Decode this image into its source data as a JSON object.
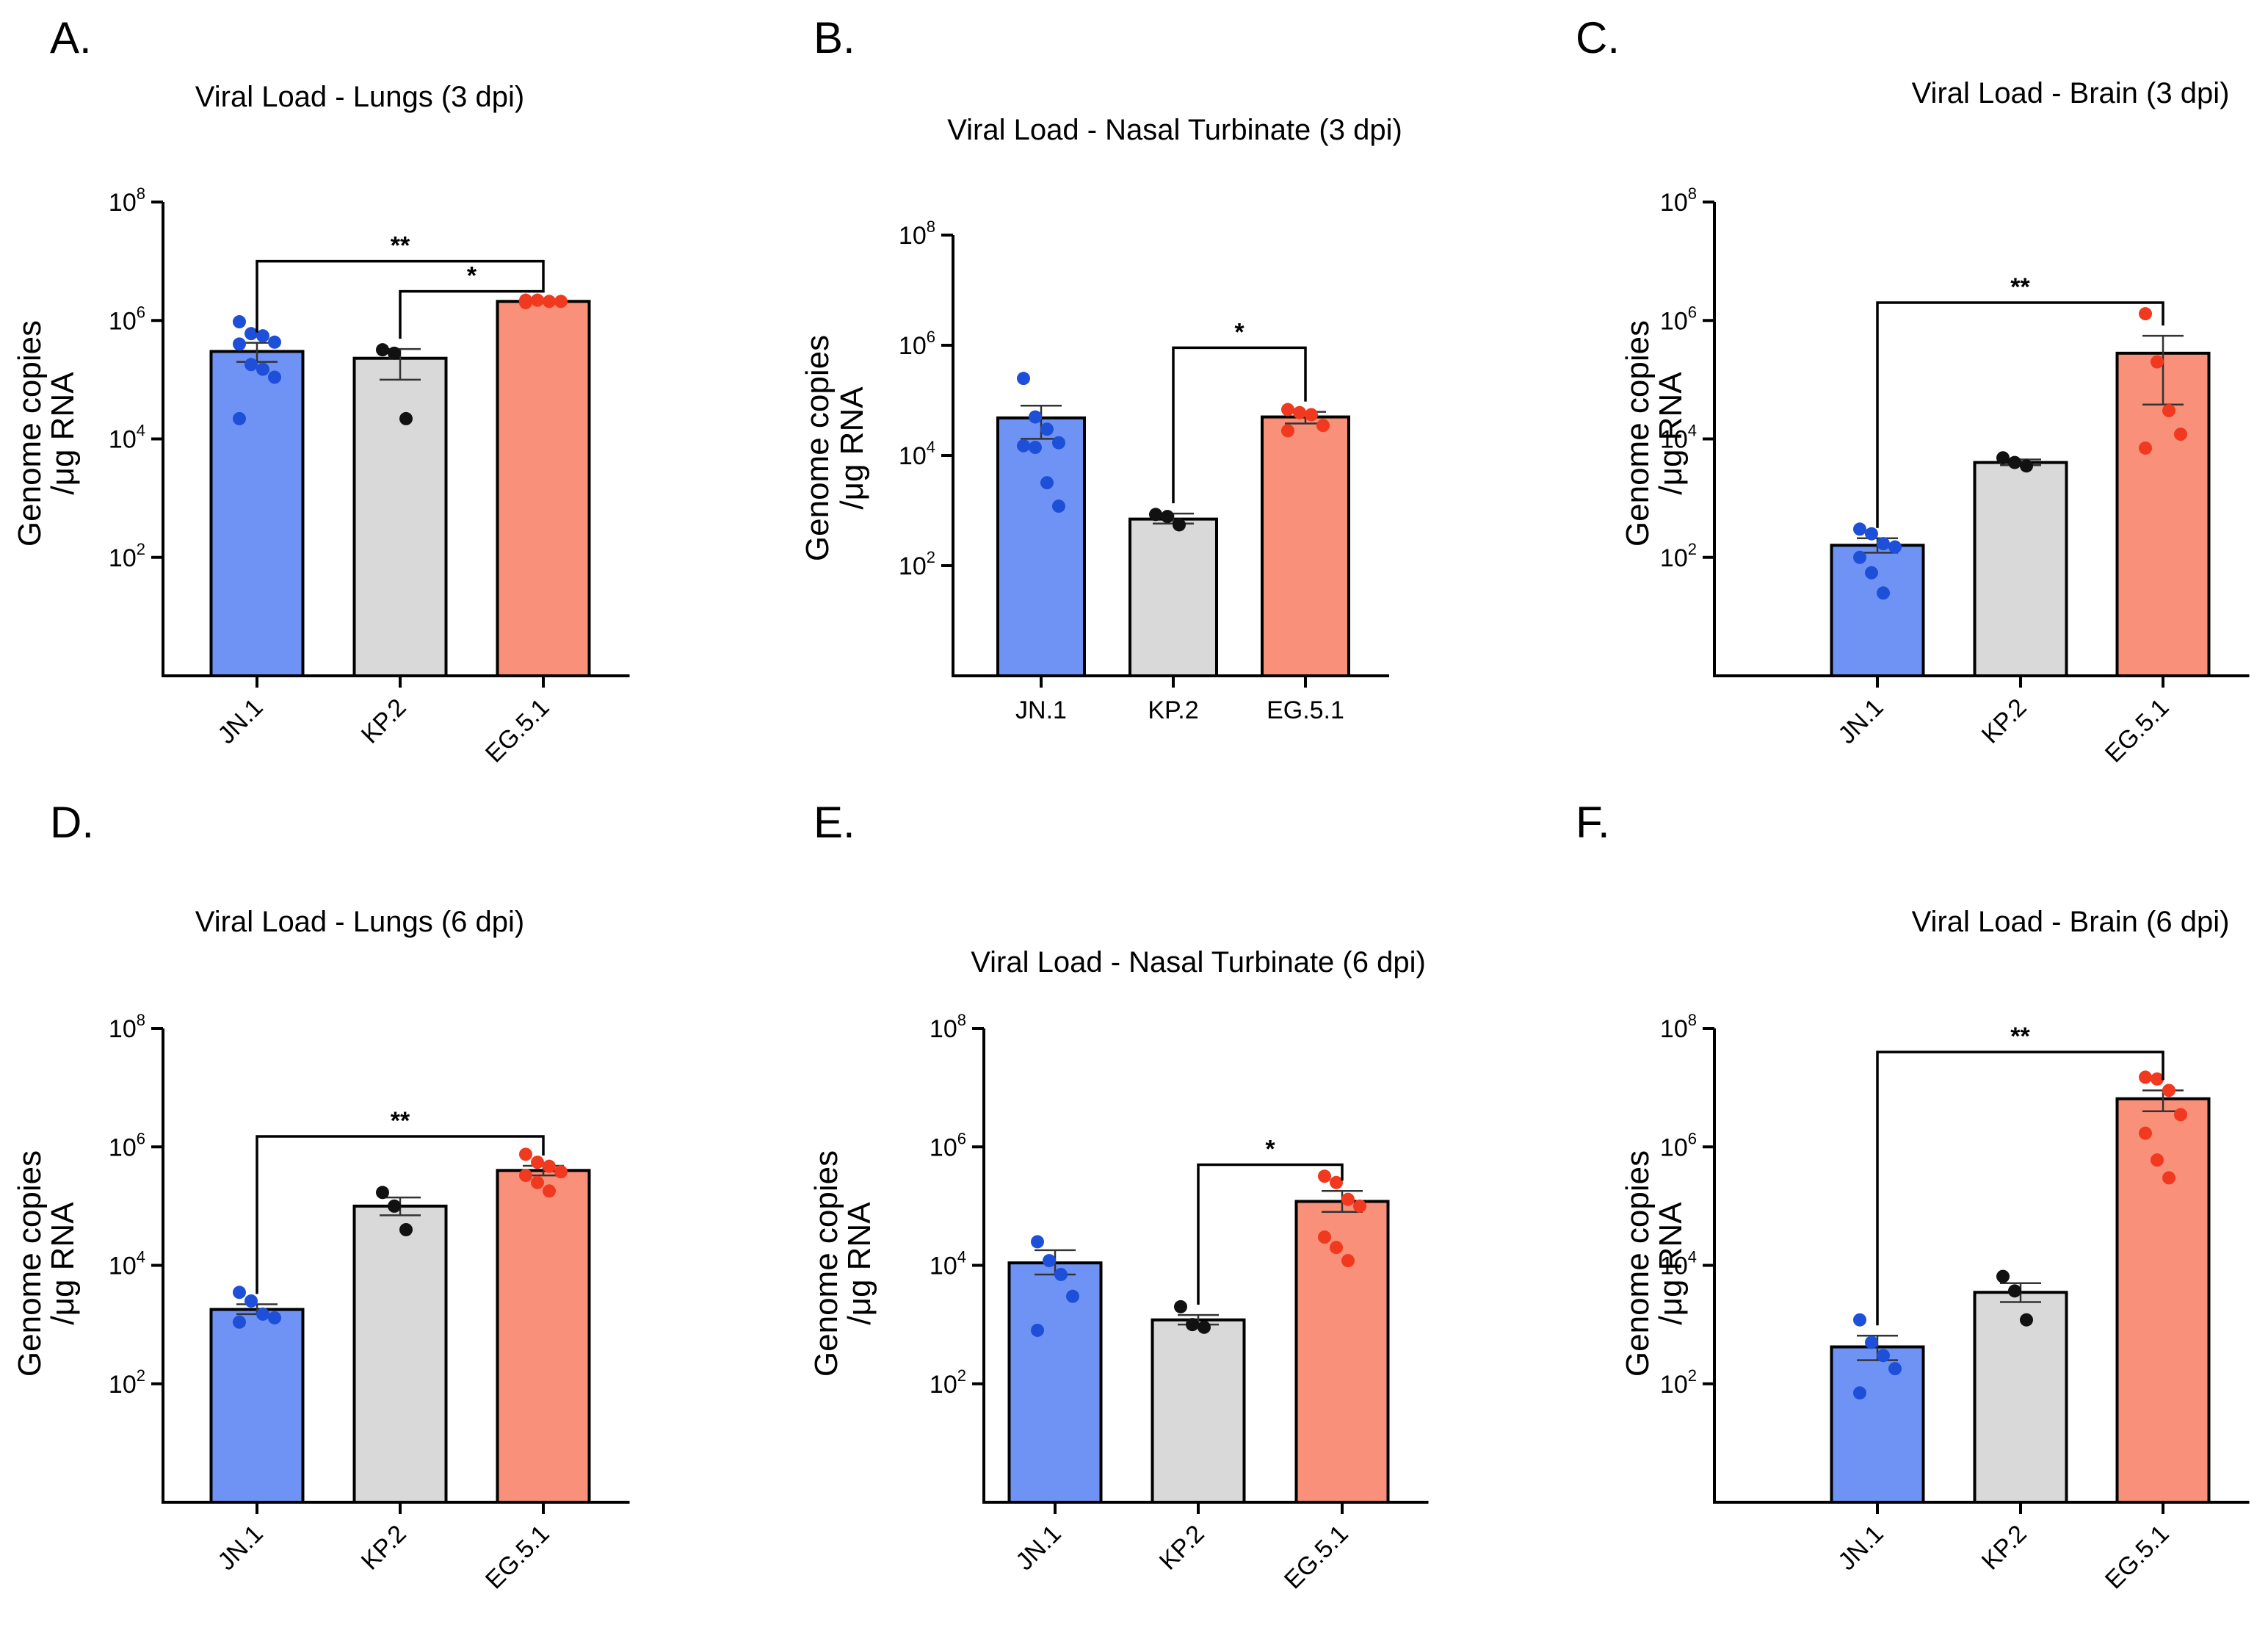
{
  "figure_colors": {
    "JN.1": "#6f93f5",
    "KP.2": "#d9d9d9",
    "EG.5.1": "#f9907a"
  },
  "dot_colors": {
    "JN.1": "#1e4fd8",
    "KP.2": "#111111",
    "EG.5.1": "#f0391e"
  },
  "chart_data": [
    {
      "panel": "A.",
      "type": "bar",
      "title": "Viral Load - Lungs (3 dpi)",
      "ylabel": [
        "Genome copies",
        "/μg RNA"
      ],
      "yscale": "log10",
      "ylim": [
        1,
        100000000
      ],
      "yticks": [
        {
          "base": "10",
          "exp": "2",
          "value": 100
        },
        {
          "base": "10",
          "exp": "4",
          "value": 10000
        },
        {
          "base": "10",
          "exp": "6",
          "value": 1000000
        },
        {
          "base": "10",
          "exp": "8",
          "value": 100000000
        }
      ],
      "categories": [
        "JN.1",
        "KP.2",
        "EG.5.1"
      ],
      "rotate_labels": true,
      "means": [
        300000,
        230000,
        2100000
      ],
      "sem_low": [
        200000,
        100000,
        2000000
      ],
      "sem_high": [
        420000,
        330000,
        2200000
      ],
      "points": [
        [
          950000,
          600000,
          550000,
          430000,
          400000,
          180000,
          150000,
          110000,
          22000
        ],
        [
          320000,
          280000,
          22000
        ],
        [
          2200000,
          2200000,
          2100000,
          2100000,
          2000000
        ]
      ],
      "significance": [
        {
          "from": 0,
          "to": 2,
          "label": "**",
          "y": 10000000
        },
        {
          "from": 1,
          "to": 2,
          "label": "*",
          "y": 3100000
        }
      ]
    },
    {
      "panel": "B.",
      "type": "bar",
      "title": "Viral Load - Nasal Turbinate (3 dpi)",
      "ylabel": [
        "Genome copies",
        "/μg RNA"
      ],
      "yscale": "log10",
      "ylim": [
        1,
        100000000
      ],
      "yticks": [
        {
          "base": "10",
          "exp": "2",
          "value": 100
        },
        {
          "base": "10",
          "exp": "4",
          "value": 10000
        },
        {
          "base": "10",
          "exp": "6",
          "value": 1000000
        },
        {
          "base": "10",
          "exp": "8",
          "value": 100000000
        }
      ],
      "categories": [
        "JN.1",
        "KP.2",
        "EG.5.1"
      ],
      "rotate_labels": false,
      "means": [
        48000,
        700,
        50000
      ],
      "sem_low": [
        20000,
        580,
        38000
      ],
      "sem_high": [
        80000,
        880,
        62000
      ],
      "points": [
        [
          250000,
          50000,
          30000,
          17000,
          15000,
          14000,
          3200,
          1200
        ],
        [
          850,
          780,
          550
        ],
        [
          68000,
          60000,
          55000,
          35000,
          28000
        ]
      ],
      "significance": [
        {
          "from": 1,
          "to": 2,
          "label": "*",
          "y": 900000
        }
      ]
    },
    {
      "panel": "C.",
      "type": "bar",
      "title": "Viral Load - Brain (3 dpi)",
      "ylabel": [
        "Genome copies",
        "/μg RNA"
      ],
      "yscale": "log10",
      "ylim": [
        1,
        100000000
      ],
      "yticks": [
        {
          "base": "10",
          "exp": "2",
          "value": 100
        },
        {
          "base": "10",
          "exp": "4",
          "value": 10000
        },
        {
          "base": "10",
          "exp": "6",
          "value": 1000000
        },
        {
          "base": "10",
          "exp": "8",
          "value": 100000000
        }
      ],
      "categories": [
        "JN.1",
        "KP.2",
        "EG.5.1"
      ],
      "rotate_labels": true,
      "means": [
        160,
        4000,
        280000
      ],
      "sem_low": [
        120,
        3600,
        38000
      ],
      "sem_high": [
        210,
        4500,
        550000
      ],
      "points": [
        [
          300,
          250,
          170,
          150,
          100,
          55,
          25
        ],
        [
          4800,
          4000,
          3500
        ],
        [
          1300000,
          200000,
          30000,
          12000,
          7000
        ]
      ],
      "significance": [
        {
          "from": 0,
          "to": 2,
          "label": "**",
          "y": 2000000
        }
      ]
    },
    {
      "panel": "D.",
      "type": "bar",
      "title": "Viral Load - Lungs (6 dpi)",
      "ylabel": [
        "Genome copies",
        "/μg RNA"
      ],
      "yscale": "log10",
      "ylim": [
        1,
        100000000
      ],
      "yticks": [
        {
          "base": "10",
          "exp": "2",
          "value": 100
        },
        {
          "base": "10",
          "exp": "4",
          "value": 10000
        },
        {
          "base": "10",
          "exp": "6",
          "value": 1000000
        },
        {
          "base": "10",
          "exp": "8",
          "value": 100000000
        }
      ],
      "categories": [
        "JN.1",
        "KP.2",
        "EG.5.1"
      ],
      "rotate_labels": true,
      "means": [
        1800,
        100000,
        400000
      ],
      "sem_low": [
        1500,
        70000,
        330000
      ],
      "sem_high": [
        2200,
        140000,
        480000
      ],
      "points": [
        [
          3500,
          2500,
          1500,
          1300,
          1100
        ],
        [
          170000,
          100000,
          40000
        ],
        [
          750000,
          550000,
          470000,
          380000,
          330000,
          250000,
          180000
        ]
      ],
      "significance": [
        {
          "from": 0,
          "to": 2,
          "label": "**",
          "y": 1500000
        }
      ]
    },
    {
      "panel": "E.",
      "type": "bar",
      "title": "Viral Load - Nasal Turbinate (6 dpi)",
      "ylabel": [
        "Genome copies",
        "/μg RNA"
      ],
      "yscale": "log10",
      "ylim": [
        1,
        100000000
      ],
      "yticks": [
        {
          "base": "10",
          "exp": "2",
          "value": 100
        },
        {
          "base": "10",
          "exp": "4",
          "value": 10000
        },
        {
          "base": "10",
          "exp": "6",
          "value": 1000000
        },
        {
          "base": "10",
          "exp": "8",
          "value": 100000000
        }
      ],
      "categories": [
        "JN.1",
        "KP.2",
        "EG.5.1"
      ],
      "rotate_labels": true,
      "means": [
        11000,
        1200,
        120000
      ],
      "sem_low": [
        7000,
        1000,
        80000
      ],
      "sem_high": [
        18000,
        1450,
        180000
      ],
      "points": [
        [
          25000,
          12000,
          7000,
          3000,
          800
        ],
        [
          2000,
          1000,
          900
        ],
        [
          320000,
          250000,
          130000,
          100000,
          30000,
          20000,
          12000
        ]
      ],
      "significance": [
        {
          "from": 1,
          "to": 2,
          "label": "*",
          "y": 500000
        }
      ]
    },
    {
      "panel": "F.",
      "type": "bar",
      "title": "Viral Load - Brain (6 dpi)",
      "ylabel": [
        "Genome copies",
        "/μg RNA"
      ],
      "yscale": "log10",
      "ylim": [
        1,
        100000000
      ],
      "yticks": [
        {
          "base": "10",
          "exp": "2",
          "value": 100
        },
        {
          "base": "10",
          "exp": "4",
          "value": 10000
        },
        {
          "base": "10",
          "exp": "6",
          "value": 1000000
        },
        {
          "base": "10",
          "exp": "8",
          "value": 100000000
        }
      ],
      "categories": [
        "JN.1",
        "KP.2",
        "EG.5.1"
      ],
      "rotate_labels": true,
      "means": [
        420,
        3500,
        6500000
      ],
      "sem_low": [
        250,
        2400,
        4000000
      ],
      "sem_high": [
        650,
        5000,
        9000000
      ],
      "points": [
        [
          1200,
          500,
          300,
          180,
          70
        ],
        [
          6500,
          3700,
          1200
        ],
        [
          15000000,
          14000000,
          9000000,
          3500000,
          1700000,
          600000,
          300000
        ]
      ],
      "significance": [
        {
          "from": 0,
          "to": 2,
          "label": "**",
          "y": 40000000
        }
      ]
    }
  ]
}
